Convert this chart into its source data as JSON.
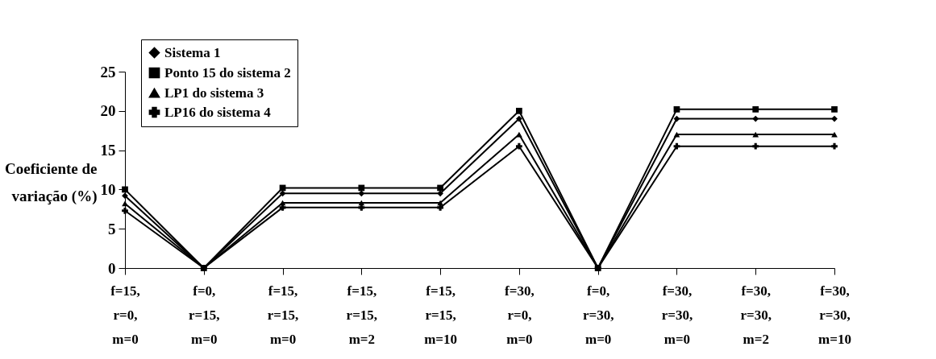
{
  "chart_data": {
    "type": "line",
    "ylabel": "Coeficiente de variação (%)",
    "categories": [
      "f=15, r=0, m=0",
      "f=0, r=15, m=0",
      "f=15, r=15, m=0",
      "f=15, r=15, m=2",
      "f=15, r=15, m=10",
      "f=30, r=0, m=0",
      "f=0, r=30, m=0",
      "f=30, r=30, m=0",
      "f=30, r=30, m=2",
      "f=30, r=30, m=10"
    ],
    "series": [
      {
        "name": "Sistema 1",
        "color": "#000000",
        "marker": "diamond",
        "values": [
          9.2,
          0,
          9.5,
          9.5,
          9.5,
          19,
          0,
          19,
          19,
          19
        ]
      },
      {
        "name": "Ponto 15 do sistema 2",
        "color": "#000000",
        "marker": "square",
        "values": [
          10,
          0,
          10.2,
          10.2,
          10.2,
          20,
          0,
          20.2,
          20.2,
          20.2
        ]
      },
      {
        "name": "LP1 do sistema 3",
        "color": "#000000",
        "marker": "triangle",
        "values": [
          8.2,
          0,
          8.3,
          8.3,
          8.3,
          17,
          0,
          17,
          17,
          17
        ]
      },
      {
        "name": "LP16 do sistema 4",
        "color": "#000000",
        "marker": "cross",
        "values": [
          7.3,
          0,
          7.7,
          7.7,
          7.7,
          15.5,
          0,
          15.5,
          15.5,
          15.5
        ]
      }
    ],
    "ylim": [
      0,
      25
    ],
    "yticks": [
      0,
      5,
      10,
      15,
      20,
      25
    ],
    "grid": false,
    "legend": "top left",
    "line_style": "solid"
  }
}
